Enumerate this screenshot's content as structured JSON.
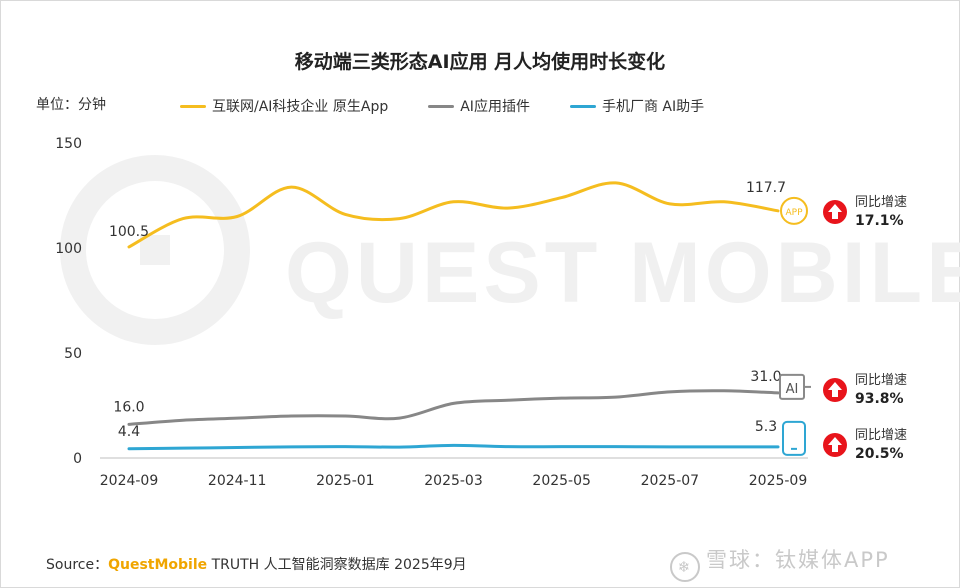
{
  "title": "移动端三类形态AI应用 月人均使用时长变化",
  "unit_label": "单位：分钟",
  "watermark": "QUEST MOBILE",
  "source": {
    "prefix": "Source：",
    "brand": "QuestMobile",
    "suffix": " TRUTH 人工智能洞察数据库 2025年9月"
  },
  "footer_watermark": "雪球：钛媒体APP",
  "colors": {
    "series1": "#f5bd1f",
    "series2": "#878787",
    "series3": "#2ea6d3",
    "arrow": "#e8141b"
  },
  "chart_data": {
    "type": "line",
    "xlabel": "",
    "ylabel": "单位：分钟",
    "ylim": [
      0,
      150
    ],
    "yticks": [
      0,
      50,
      100,
      150
    ],
    "grid": false,
    "legend_position": "top",
    "x": [
      "2024-09",
      "2024-10",
      "2024-11",
      "2024-12",
      "2025-01",
      "2025-02",
      "2025-03",
      "2025-04",
      "2025-05",
      "2025-06",
      "2025-07",
      "2025-08",
      "2025-09"
    ],
    "x_tick_labels": [
      "2024-09",
      "2024-11",
      "2025-01",
      "2025-03",
      "2025-05",
      "2025-07",
      "2025-09"
    ],
    "series": [
      {
        "name": "互联网/AI科技企业 原生App",
        "values": [
          100.5,
          114,
          115,
          129,
          116,
          114,
          122,
          119,
          124,
          131,
          121,
          122,
          117.7
        ],
        "start_label": "100.5",
        "end_label": "117.7",
        "end_icon": "app-icon",
        "end_icon_text": "APP",
        "growth_label": "同比增速",
        "growth_value": "17.1%"
      },
      {
        "name": "AI应用插件",
        "values": [
          16.0,
          18,
          19,
          20,
          20,
          19,
          26,
          27.5,
          28.5,
          29,
          31.5,
          32,
          31.0
        ],
        "start_label": "16.0",
        "end_label": "31.0",
        "end_icon": "ai-plugin-icon",
        "end_icon_text": "AI",
        "growth_label": "同比增速",
        "growth_value": "93.8%"
      },
      {
        "name": "手机厂商 AI助手",
        "values": [
          4.4,
          4.7,
          5.0,
          5.3,
          5.4,
          5.2,
          6.0,
          5.4,
          5.4,
          5.4,
          5.3,
          5.3,
          5.3
        ],
        "start_label": "4.4",
        "end_label": "5.3",
        "end_icon": "phone-icon",
        "end_icon_text": "",
        "growth_label": "同比增速",
        "growth_value": "20.5%"
      }
    ]
  }
}
